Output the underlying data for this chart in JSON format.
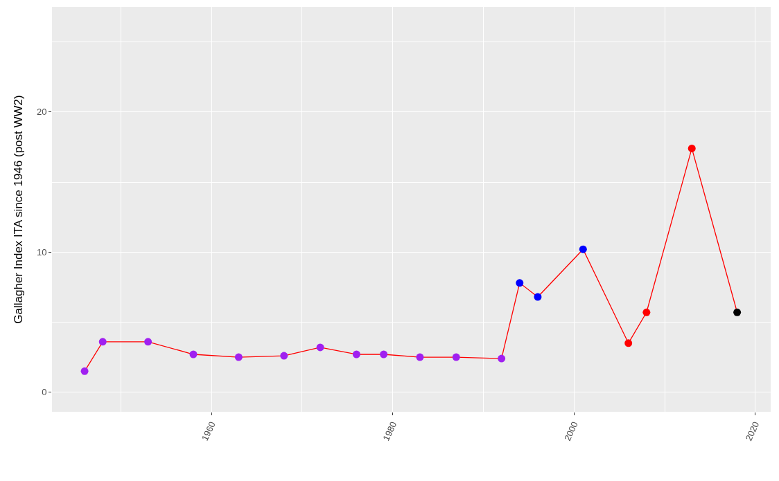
{
  "chart_data": {
    "type": "line",
    "ylabel": "Gallagher Index ITA since 1946 (post WW2)",
    "x": [
      1946,
      1948,
      1953,
      1958,
      1963,
      1968,
      1972,
      1976,
      1979,
      1983,
      1987,
      1992,
      1994,
      1996,
      2001,
      2006,
      2008,
      2013,
      2018
    ],
    "series": [
      {
        "color": "#ff0000",
        "values": [
          1.5,
          3.6,
          3.6,
          2.7,
          2.5,
          2.6,
          3.2,
          2.7,
          2.7,
          2.5,
          2.5,
          2.4,
          7.8,
          6.8,
          10.2,
          3.5,
          5.7,
          17.4,
          5.7
        ],
        "colors": [
          "#a020f0",
          "#a020f0",
          "#a020f0",
          "#a020f0",
          "#a020f0",
          "#a020f0",
          "#a020f0",
          "#a020f0",
          "#a020f0",
          "#a020f0",
          "#a020f0",
          "#a020f0",
          "#0000ff",
          "#0000ff",
          "#0000ff",
          "#ff0000",
          "#ff0000",
          "#ff0000",
          "#000000"
        ]
      }
    ],
    "xlim": [
      1942.4,
      2021.7
    ],
    "xticks": [
      {
        "value": 1950,
        "label": null
      },
      1960,
      {
        "value": 1970,
        "label": null
      },
      1980,
      {
        "value": 1990,
        "label": null
      },
      2000,
      {
        "value": 2010,
        "label": null
      },
      2020
    ],
    "ylim": [
      -1.4,
      27.5
    ],
    "yticks": [
      0,
      {
        "value": 5,
        "label": null
      },
      10,
      {
        "value": 15,
        "label": null
      },
      20,
      {
        "value": 25,
        "label": null
      }
    ],
    "grid": true,
    "marker": "circle",
    "line_style": "solid"
  }
}
